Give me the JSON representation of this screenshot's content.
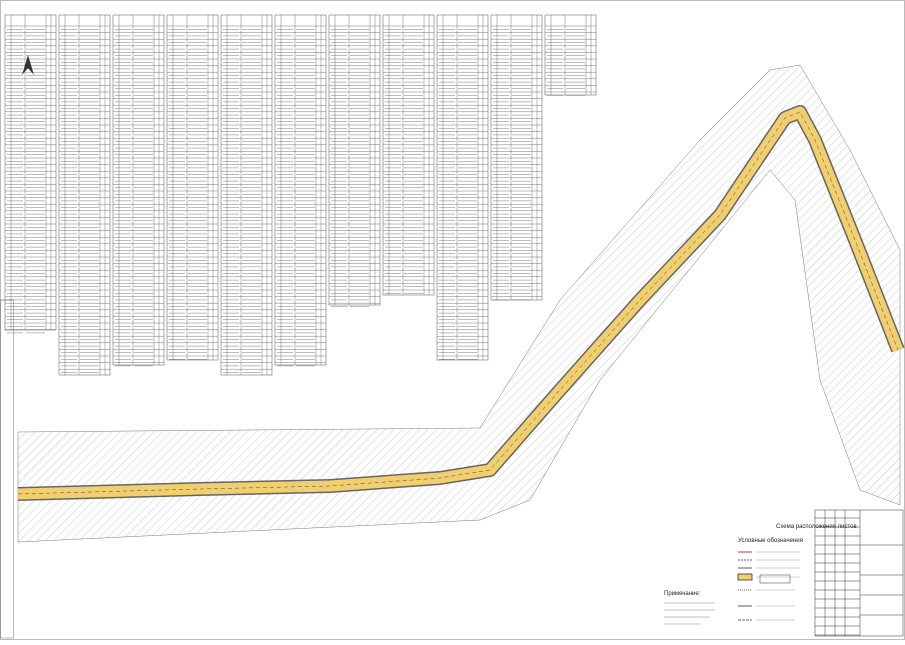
{
  "sheet_scheme": {
    "title": "Схема расположения листов"
  },
  "legend": {
    "title": "Условные обозначения"
  },
  "note": {
    "title": "Примечание:"
  }
}
